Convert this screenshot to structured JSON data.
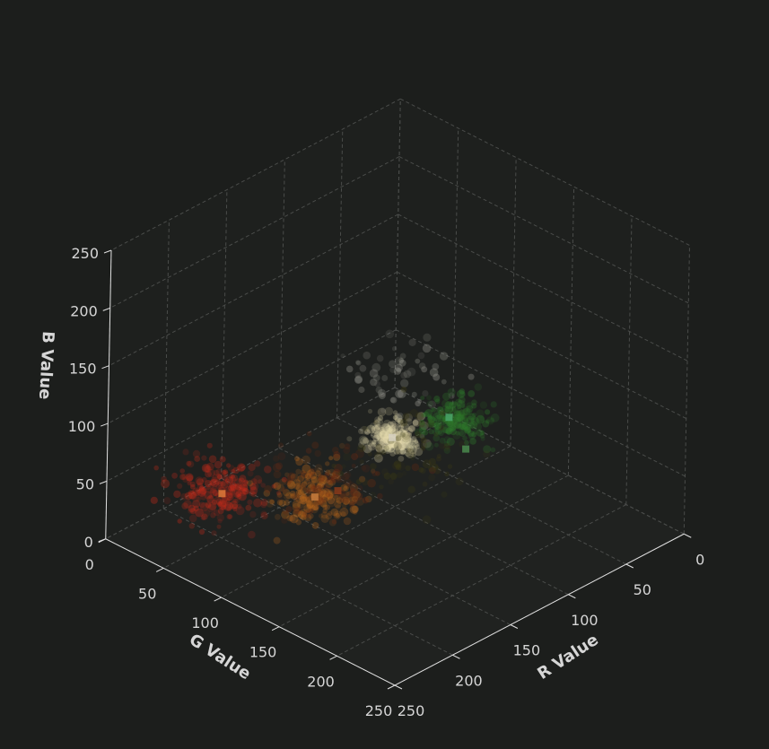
{
  "chart_data": {
    "type": "scatter3d",
    "title": "",
    "xlabel": "R Value",
    "ylabel": "G Value",
    "zlabel": "B Value",
    "xlim": [
      0,
      250
    ],
    "ylim": [
      0,
      250
    ],
    "zlim": [
      0,
      250
    ],
    "x_ticks": [
      "0",
      "50",
      "100",
      "150",
      "200",
      "250"
    ],
    "y_ticks": [
      "0",
      "50",
      "100",
      "150",
      "200",
      "250"
    ],
    "z_ticks": [
      "0",
      "50",
      "100",
      "150",
      "200",
      "250"
    ],
    "grid": true,
    "background": "#1c1e1c",
    "clusters": [
      {
        "color": "#c22a1a",
        "center": [
          190,
          40,
          30
        ],
        "spread": 14,
        "points": 220
      },
      {
        "color": "#b8661c",
        "center": [
          170,
          100,
          45
        ],
        "spread": 12,
        "points": 200
      },
      {
        "color": "#6b2a12",
        "center": [
          150,
          90,
          40
        ],
        "spread": 18,
        "points": 90
      },
      {
        "color": "#e6dcae",
        "center": [
          185,
          180,
          145
        ],
        "spread": 8,
        "points": 220
      },
      {
        "color": "#9a9a92",
        "center": [
          150,
          155,
          165
        ],
        "spread": 14,
        "points": 60
      },
      {
        "color": "#2f7a2c",
        "center": [
          90,
          140,
          90
        ],
        "spread": 10,
        "points": 200
      },
      {
        "color": "#3d3a14",
        "center": [
          110,
          120,
          60
        ],
        "spread": 18,
        "points": 80
      }
    ],
    "centroids": [
      {
        "color": "#e07a3a",
        "rgb": [
          190,
          40,
          28
        ]
      },
      {
        "color": "#c47a3c",
        "rgb": [
          170,
          100,
          45
        ]
      },
      {
        "color": "#d6d0c0",
        "rgb": [
          185,
          180,
          145
        ]
      },
      {
        "color": "#4aa66a",
        "rgb": [
          95,
          140,
          95
        ]
      },
      {
        "color": "#4a8a4e",
        "rgb": [
          90,
          150,
          70
        ]
      },
      {
        "color": "#8a3a1a",
        "rgb": [
          150,
          100,
          40
        ]
      }
    ]
  }
}
